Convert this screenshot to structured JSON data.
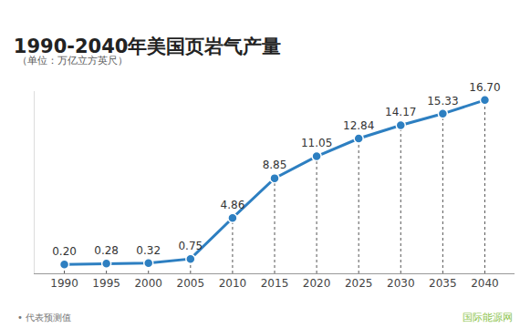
{
  "chart_data": {
    "type": "line",
    "title": "1990-2040年美国页岩气产量",
    "subtitle": "（单位：万亿立方英尺）",
    "note": "• 代表预测值",
    "source": "国际能源网",
    "categories": [
      "1990",
      "1995",
      "2000",
      "2005",
      "2010",
      "2015",
      "2020",
      "2025",
      "2030",
      "2035",
      "2040"
    ],
    "values": [
      0.2,
      0.28,
      0.32,
      0.75,
      4.86,
      8.85,
      11.05,
      12.84,
      14.17,
      15.33,
      16.7
    ],
    "value_labels": [
      "0.20",
      "0.28",
      "0.32",
      "0.75",
      "4.86",
      "8.85",
      "11.05",
      "12.84",
      "14.17",
      "15.33",
      "16.70"
    ],
    "color": "#2d7fc1",
    "ylim": [
      -0.7,
      17.6
    ],
    "yticks": [],
    "grid": false,
    "data_labels": true,
    "tick_labels": "x",
    "marker": "circle",
    "line_style": "solid"
  }
}
